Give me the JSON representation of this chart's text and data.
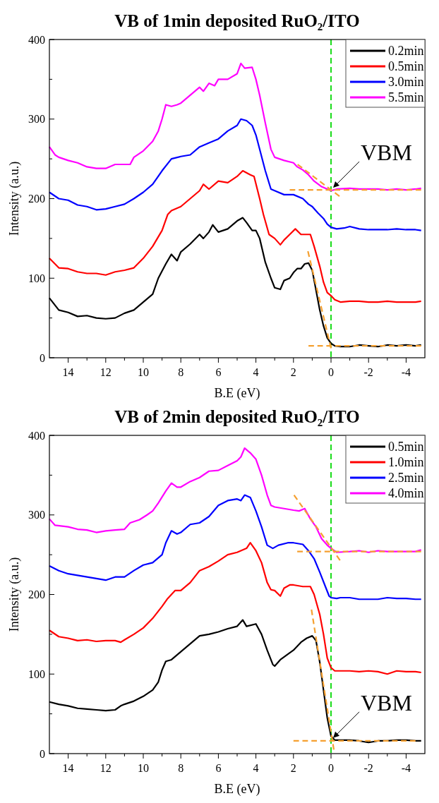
{
  "chart_data": [
    {
      "type": "line",
      "title": "VB of 1min deposited RuO₂/ITO",
      "xlabel": "B.E (eV)",
      "ylabel": "Intensity (a.u.)",
      "xlim": [
        15,
        -5
      ],
      "ylim": [
        0,
        400
      ],
      "xticks": [
        {
          "value": 14,
          "label": "14"
        },
        {
          "value": 13,
          "label": null
        },
        {
          "value": 12,
          "label": "12"
        },
        {
          "value": 11,
          "label": null
        },
        {
          "value": 10,
          "label": "10"
        },
        {
          "value": 9,
          "label": null
        },
        {
          "value": 8,
          "label": "8"
        },
        {
          "value": 7,
          "label": null
        },
        {
          "value": 6,
          "label": "6"
        },
        {
          "value": 5,
          "label": null
        },
        {
          "value": 4,
          "label": "4"
        },
        {
          "value": 3,
          "label": null
        },
        {
          "value": 2,
          "label": "2"
        },
        {
          "value": 1,
          "label": null
        },
        {
          "value": 0,
          "label": "0"
        },
        {
          "value": -1,
          "label": null
        },
        {
          "value": -2,
          "label": "-2"
        },
        {
          "value": -3,
          "label": null
        },
        {
          "value": -4,
          "label": "-4"
        }
      ],
      "yticks": [
        0,
        {
          "value": 50,
          "label": null
        },
        100,
        {
          "value": 150,
          "label": null
        },
        200,
        {
          "value": 250,
          "label": null
        },
        300,
        {
          "value": 350,
          "label": null
        },
        400
      ],
      "grid": false,
      "legend": "top right",
      "line_style": "solid",
      "series": [
        {
          "name": "0.2min",
          "color": "#000000",
          "x": [
            15,
            14.5,
            14,
            13.5,
            13,
            12.5,
            12,
            11.5,
            11,
            10.5,
            10,
            9.5,
            9.2,
            8.8,
            8.5,
            8.2,
            8,
            7.5,
            7,
            6.8,
            6.5,
            6.3,
            6,
            5.5,
            5,
            4.7,
            4.5,
            4.2,
            4,
            3.8,
            3.5,
            3.2,
            3,
            2.7,
            2.5,
            2.2,
            2,
            1.8,
            1.6,
            1.4,
            1.2,
            1,
            0.8,
            0.6,
            0.4,
            0.2,
            0,
            -0.2,
            -0.5,
            -1,
            -1.5,
            -2,
            -2.5,
            -3,
            -3.5,
            -4,
            -4.5,
            -4.8
          ],
          "values": [
            75,
            60,
            57,
            52,
            53,
            50,
            49,
            50,
            56,
            60,
            70,
            80,
            100,
            118,
            130,
            122,
            133,
            143,
            155,
            150,
            158,
            167,
            158,
            162,
            172,
            176,
            170,
            160,
            160,
            150,
            120,
            100,
            88,
            86,
            97,
            100,
            107,
            112,
            112,
            118,
            119,
            110,
            85,
            60,
            40,
            25,
            18,
            15,
            14,
            14,
            16,
            15,
            14,
            16,
            15,
            16,
            15,
            16
          ]
        },
        {
          "name": "0.5min",
          "color": "#ff0000",
          "x": [
            15,
            14.5,
            14,
            13.5,
            13,
            12.5,
            12,
            11.5,
            11,
            10.5,
            10,
            9.5,
            9,
            8.7,
            8.5,
            8,
            7.5,
            7,
            6.8,
            6.5,
            6,
            5.5,
            5,
            4.7,
            4.3,
            4.1,
            3.8,
            3.6,
            3.3,
            3,
            2.7,
            2.5,
            2.2,
            1.9,
            1.6,
            1.3,
            1.1,
            0.9,
            0.6,
            0.4,
            0.2,
            0,
            -0.2,
            -0.5,
            -1,
            -1.5,
            -2,
            -2.5,
            -3,
            -3.5,
            -4,
            -4.5,
            -4.8
          ],
          "values": [
            125,
            113,
            112,
            108,
            106,
            106,
            104,
            108,
            110,
            113,
            125,
            140,
            160,
            180,
            185,
            190,
            200,
            210,
            218,
            212,
            222,
            220,
            228,
            235,
            230,
            228,
            200,
            180,
            155,
            150,
            142,
            148,
            155,
            162,
            155,
            155,
            155,
            140,
            115,
            95,
            82,
            78,
            73,
            70,
            71,
            71,
            70,
            70,
            71,
            70,
            70,
            70,
            71
          ]
        },
        {
          "name": "3.0min",
          "color": "#0000ff",
          "x": [
            15,
            14.5,
            14,
            13.5,
            13,
            12.5,
            12,
            11.5,
            11,
            10.5,
            10,
            9.5,
            9,
            8.5,
            8,
            7.5,
            7,
            6.5,
            6,
            5.5,
            5,
            4.8,
            4.5,
            4.2,
            4,
            3.8,
            3.5,
            3.2,
            3,
            2.5,
            2,
            1.5,
            1.2,
            1,
            0.7,
            0.4,
            0.2,
            0,
            -0.3,
            -0.7,
            -1,
            -1.5,
            -2,
            -2.5,
            -3,
            -3.5,
            -4,
            -4.5,
            -4.8
          ],
          "values": [
            208,
            200,
            198,
            192,
            190,
            186,
            187,
            190,
            193,
            200,
            208,
            218,
            235,
            250,
            253,
            255,
            265,
            270,
            275,
            285,
            292,
            300,
            298,
            292,
            280,
            262,
            235,
            212,
            210,
            205,
            205,
            200,
            193,
            190,
            182,
            175,
            168,
            164,
            162,
            163,
            165,
            162,
            161,
            161,
            161,
            162,
            161,
            161,
            160
          ]
        },
        {
          "name": "5.5min",
          "color": "#ff00ff",
          "x": [
            15,
            14.7,
            14.5,
            14,
            13.5,
            13,
            12.5,
            12,
            11.5,
            11,
            10.7,
            10.5,
            10,
            9.5,
            9.2,
            9,
            8.8,
            8.5,
            8.2,
            8,
            7.5,
            7,
            6.8,
            6.5,
            6.2,
            6,
            5.5,
            5,
            4.8,
            4.6,
            4.2,
            4,
            3.8,
            3.5,
            3.2,
            3,
            2.5,
            2,
            1.8,
            1.5,
            1.2,
            0.9,
            0.5,
            0,
            -0.3,
            -1,
            -1.5,
            -2,
            -2.5,
            -3,
            -3.5,
            -4,
            -4.5,
            -4.8
          ],
          "values": [
            265,
            255,
            252,
            248,
            245,
            240,
            238,
            238,
            243,
            243,
            243,
            252,
            260,
            272,
            285,
            300,
            318,
            316,
            318,
            320,
            330,
            340,
            335,
            345,
            342,
            350,
            350,
            357,
            370,
            364,
            365,
            350,
            330,
            295,
            262,
            252,
            248,
            245,
            240,
            236,
            230,
            222,
            215,
            210,
            212,
            213,
            212,
            212,
            212,
            211,
            212,
            211,
            212,
            213
          ]
        },
        {
          "type": "line",
          "color": "#f5a030",
          "line_style": "dashed",
          "x": [
            1.2,
            -4.8
          ],
          "values": [
            15,
            15
          ]
        },
        {
          "type": "line",
          "color": "#f5a030",
          "line_style": "dashed",
          "x": [
            1.23,
            0
          ],
          "values": [
            134,
            12
          ]
        },
        {
          "type": "line",
          "color": "#f5a030",
          "line_style": "dashed",
          "x": [
            2.2,
            -4.8
          ],
          "values": [
            211,
            211
          ]
        },
        {
          "type": "line",
          "color": "#f5a030",
          "line_style": "dashed",
          "x": [
            1.78,
            -0.45
          ],
          "values": [
            243,
            203
          ]
        }
      ],
      "ref_lines": [
        {
          "axis": "x",
          "value": 0,
          "color": "#22dd22",
          "line_style": "dashed"
        }
      ],
      "annotations": [
        {
          "text": "VBM",
          "x": 0,
          "y": 211
        }
      ]
    },
    {
      "type": "line",
      "title": "VB of 2min deposited RuO₂/ITO",
      "xlabel": "B.E (eV)",
      "ylabel": "Intensity (a.u.)",
      "xlim": [
        15,
        -5
      ],
      "ylim": [
        0,
        400
      ],
      "xticks": [
        {
          "value": 14,
          "label": "14"
        },
        {
          "value": 13,
          "label": null
        },
        {
          "value": 12,
          "label": "12"
        },
        {
          "value": 11,
          "label": null
        },
        {
          "value": 10,
          "label": "10"
        },
        {
          "value": 9,
          "label": null
        },
        {
          "value": 8,
          "label": "8"
        },
        {
          "value": 7,
          "label": null
        },
        {
          "value": 6,
          "label": "6"
        },
        {
          "value": 5,
          "label": null
        },
        {
          "value": 4,
          "label": "4"
        },
        {
          "value": 3,
          "label": null
        },
        {
          "value": 2,
          "label": "2"
        },
        {
          "value": 1,
          "label": null
        },
        {
          "value": 0,
          "label": "0"
        },
        {
          "value": -1,
          "label": null
        },
        {
          "value": -2,
          "label": "-2"
        },
        {
          "value": -3,
          "label": null
        },
        {
          "value": -4,
          "label": "-4"
        }
      ],
      "yticks": [
        0,
        {
          "value": 50,
          "label": null
        },
        100,
        {
          "value": 150,
          "label": null
        },
        200,
        {
          "value": 250,
          "label": null
        },
        300,
        {
          "value": 350,
          "label": null
        },
        400
      ],
      "grid": false,
      "legend": "top right",
      "line_style": "solid",
      "series": [
        {
          "name": "0.5min",
          "color": "#000000",
          "x": [
            15,
            14.5,
            14,
            13.5,
            13,
            12.5,
            12,
            11.5,
            11.2,
            11,
            10.5,
            10,
            9.5,
            9.2,
            9,
            8.8,
            8.5,
            8,
            7.5,
            7,
            6.5,
            6,
            5.5,
            5,
            4.7,
            4.5,
            4,
            3.7,
            3.4,
            3.1,
            3,
            2.7,
            2.3,
            2,
            1.6,
            1.3,
            1,
            0.8,
            0.6,
            0.4,
            0.2,
            0,
            -0.2,
            -0.5,
            -1,
            -1.5,
            -2,
            -2.5,
            -3,
            -3.5,
            -4,
            -4.5,
            -4.8
          ],
          "values": [
            65,
            62,
            60,
            57,
            56,
            55,
            54,
            55,
            60,
            62,
            66,
            72,
            80,
            90,
            105,
            116,
            118,
            128,
            138,
            148,
            150,
            153,
            157,
            160,
            168,
            160,
            163,
            150,
            130,
            112,
            110,
            118,
            125,
            130,
            140,
            145,
            148,
            142,
            115,
            80,
            45,
            22,
            17,
            17,
            17,
            16,
            14,
            16,
            16,
            17,
            17,
            16,
            16
          ]
        },
        {
          "name": "1.0min",
          "color": "#ff0000",
          "x": [
            15,
            14.5,
            14,
            13.5,
            13,
            12.5,
            12,
            11.5,
            11.2,
            11,
            10.5,
            10,
            9.5,
            9,
            8.7,
            8.3,
            8,
            7.5,
            7,
            6.5,
            6,
            5.5,
            5,
            4.5,
            4.3,
            4,
            3.7,
            3.4,
            3.2,
            3,
            2.7,
            2.5,
            2.2,
            2,
            1.5,
            1.1,
            0.9,
            0.6,
            0.4,
            0.2,
            0,
            -0.2,
            -0.5,
            -1,
            -1.5,
            -2,
            -2.5,
            -3,
            -3.5,
            -4,
            -4.5,
            -4.8
          ],
          "values": [
            155,
            147,
            145,
            142,
            143,
            141,
            142,
            142,
            140,
            143,
            150,
            158,
            170,
            185,
            195,
            205,
            205,
            215,
            230,
            235,
            242,
            250,
            253,
            258,
            265,
            255,
            240,
            215,
            206,
            205,
            198,
            208,
            212,
            212,
            210,
            210,
            200,
            175,
            150,
            120,
            108,
            104,
            104,
            104,
            103,
            104,
            103,
            100,
            104,
            103,
            103,
            102
          ]
        },
        {
          "name": "2.5min",
          "color": "#0000ff",
          "x": [
            15,
            14.5,
            14,
            13.5,
            13,
            12.5,
            12,
            11.5,
            11,
            10.5,
            10,
            9.5,
            9,
            8.8,
            8.5,
            8.2,
            8,
            7.5,
            7,
            6.5,
            6,
            5.5,
            5,
            4.8,
            4.6,
            4.3,
            4,
            3.7,
            3.4,
            3.1,
            2.8,
            2.3,
            2,
            1.5,
            1.2,
            0.9,
            0.6,
            0.3,
            0.1,
            0,
            -0.3,
            -0.5,
            -1,
            -1.5,
            -2,
            -2.5,
            -3,
            -3.5,
            -4,
            -4.5,
            -4.8
          ],
          "values": [
            236,
            230,
            226,
            224,
            222,
            220,
            218,
            222,
            222,
            230,
            237,
            240,
            250,
            265,
            280,
            276,
            278,
            288,
            290,
            298,
            312,
            318,
            320,
            318,
            325,
            322,
            305,
            285,
            262,
            258,
            262,
            265,
            265,
            263,
            255,
            245,
            228,
            210,
            198,
            196,
            195,
            196,
            196,
            194,
            194,
            194,
            196,
            195,
            195,
            194,
            194
          ]
        },
        {
          "name": "4.0min",
          "color": "#ff00ff",
          "x": [
            15,
            14.7,
            14,
            13.5,
            13,
            12.5,
            12,
            11.5,
            11,
            10.7,
            10.2,
            9.8,
            9.5,
            9.2,
            8.8,
            8.5,
            8.2,
            8,
            7.5,
            7,
            6.5,
            6,
            5.5,
            5,
            4.8,
            4.6,
            4.3,
            4,
            3.7,
            3.4,
            3.2,
            3,
            2.5,
            2,
            1.7,
            1.4,
            1.1,
            0.8,
            0.5,
            0.2,
            0,
            -0.3,
            -1,
            -1.5,
            -2,
            -2.5,
            -3,
            -3.5,
            -4,
            -4.5,
            -4.8
          ],
          "values": [
            295,
            287,
            285,
            282,
            281,
            278,
            280,
            281,
            282,
            290,
            294,
            300,
            305,
            315,
            330,
            340,
            335,
            335,
            342,
            347,
            355,
            356,
            362,
            368,
            373,
            384,
            378,
            370,
            350,
            325,
            312,
            310,
            308,
            306,
            305,
            308,
            295,
            285,
            270,
            262,
            258,
            253,
            254,
            255,
            253,
            255,
            254,
            254,
            254,
            254,
            256
          ]
        },
        {
          "type": "line",
          "color": "#f5a030",
          "line_style": "dashed",
          "x": [
            2,
            -4.5
          ],
          "values": [
            16,
            16
          ]
        },
        {
          "type": "line",
          "color": "#f5a030",
          "line_style": "dashed",
          "x": [
            1.04,
            -0.15
          ],
          "values": [
            181,
            5
          ]
        },
        {
          "type": "line",
          "color": "#f5a030",
          "line_style": "dashed",
          "x": [
            1.8,
            -4.8
          ],
          "values": [
            254,
            254
          ]
        },
        {
          "type": "line",
          "color": "#f5a030",
          "line_style": "dashed",
          "x": [
            1.97,
            -0.48
          ],
          "values": [
            325,
            243
          ]
        }
      ],
      "ref_lines": [
        {
          "axis": "x",
          "value": 0,
          "color": "#22dd22",
          "line_style": "dashed"
        }
      ],
      "annotations": [
        {
          "text": "VBM",
          "x": 0,
          "y": 17
        }
      ]
    }
  ]
}
